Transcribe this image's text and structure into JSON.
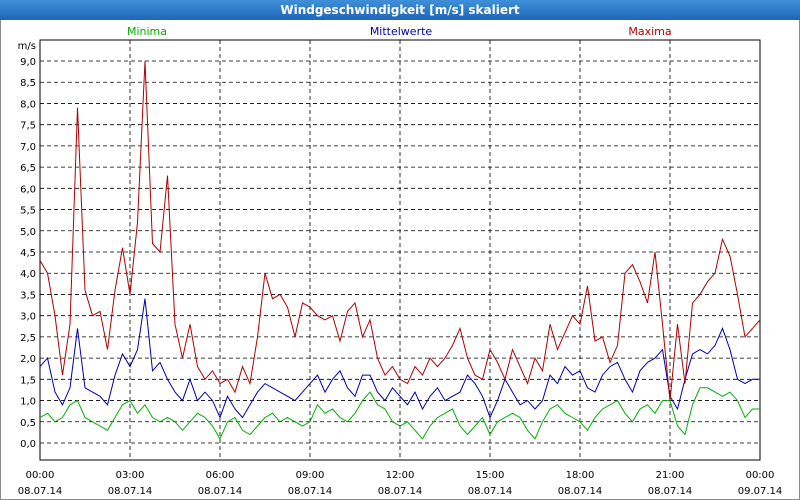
{
  "window": {
    "title": "Windgeschwindigkeit [m/s] skaliert"
  },
  "chart_data": {
    "type": "line",
    "title": "Windgeschwindigkeit [m/s] skaliert",
    "ylabel": "m/s",
    "xlabel": "",
    "ylim": [
      0,
      9
    ],
    "xlim": [
      0,
      24
    ],
    "y_ticks": [
      "0,0",
      "0,5",
      "1,0",
      "1,5",
      "2,0",
      "2,5",
      "3,0",
      "3,5",
      "4,0",
      "4,5",
      "5,0",
      "5,5",
      "6,0",
      "6,5",
      "7,0",
      "7,5",
      "8,0",
      "8,5",
      "9,0"
    ],
    "x_ticks": [
      {
        "time": "00:00",
        "date": "08.07.14"
      },
      {
        "time": "03:00",
        "date": "08.07.14"
      },
      {
        "time": "06:00",
        "date": "08.07.14"
      },
      {
        "time": "09:00",
        "date": "08.07.14"
      },
      {
        "time": "12:00",
        "date": "08.07.14"
      },
      {
        "time": "15:00",
        "date": "08.07.14"
      },
      {
        "time": "18:00",
        "date": "08.07.14"
      },
      {
        "time": "21:00",
        "date": "08.07.14"
      },
      {
        "time": "00:00",
        "date": "09.07.14"
      }
    ],
    "grid": true,
    "series": [
      {
        "name": "Minima",
        "color": "#00b000",
        "x": [
          0,
          0.25,
          0.5,
          0.75,
          1,
          1.25,
          1.5,
          1.75,
          2,
          2.25,
          2.5,
          2.75,
          3,
          3.25,
          3.5,
          3.75,
          4,
          4.25,
          4.5,
          4.75,
          5,
          5.25,
          5.5,
          5.75,
          6,
          6.25,
          6.5,
          6.75,
          7,
          7.25,
          7.5,
          7.75,
          8,
          8.25,
          8.5,
          8.75,
          9,
          9.25,
          9.5,
          9.75,
          10,
          10.25,
          10.5,
          10.75,
          11,
          11.25,
          11.5,
          11.75,
          12,
          12.25,
          12.5,
          12.75,
          13,
          13.25,
          13.5,
          13.75,
          14,
          14.25,
          14.5,
          14.75,
          15,
          15.25,
          15.5,
          15.75,
          16,
          16.25,
          16.5,
          16.75,
          17,
          17.25,
          17.5,
          17.75,
          18,
          18.25,
          18.5,
          18.75,
          19,
          19.25,
          19.5,
          19.75,
          20,
          20.25,
          20.5,
          20.75,
          21,
          21.25,
          21.5,
          21.75,
          22,
          22.25,
          22.5,
          22.75,
          23,
          23.25,
          23.5,
          23.75,
          24
        ],
        "values": [
          0.6,
          0.7,
          0.5,
          0.6,
          0.9,
          1.0,
          0.6,
          0.5,
          0.4,
          0.3,
          0.6,
          0.9,
          1.0,
          0.7,
          0.9,
          0.6,
          0.5,
          0.6,
          0.5,
          0.3,
          0.5,
          0.7,
          0.6,
          0.4,
          0.1,
          0.5,
          0.6,
          0.3,
          0.2,
          0.4,
          0.6,
          0.7,
          0.5,
          0.6,
          0.5,
          0.4,
          0.5,
          0.9,
          0.7,
          0.8,
          0.6,
          0.5,
          0.7,
          1.0,
          1.2,
          0.9,
          0.8,
          0.5,
          0.4,
          0.5,
          0.3,
          0.1,
          0.4,
          0.6,
          0.7,
          0.8,
          0.4,
          0.2,
          0.4,
          0.6,
          0.2,
          0.5,
          0.6,
          0.7,
          0.6,
          0.3,
          0.1,
          0.5,
          0.8,
          0.9,
          0.7,
          0.6,
          0.5,
          0.3,
          0.6,
          0.8,
          0.9,
          1.0,
          0.7,
          0.5,
          0.8,
          0.9,
          0.7,
          1.0,
          1.0,
          0.4,
          0.2,
          0.9,
          1.3,
          1.3,
          1.2,
          1.1,
          1.2,
          1.0,
          0.6,
          0.8,
          0.8
        ]
      },
      {
        "name": "Mittelwerte",
        "color": "#0000b0",
        "x": [
          0,
          0.25,
          0.5,
          0.75,
          1,
          1.25,
          1.5,
          1.75,
          2,
          2.25,
          2.5,
          2.75,
          3,
          3.25,
          3.5,
          3.75,
          4,
          4.25,
          4.5,
          4.75,
          5,
          5.25,
          5.5,
          5.75,
          6,
          6.25,
          6.5,
          6.75,
          7,
          7.25,
          7.5,
          7.75,
          8,
          8.25,
          8.5,
          8.75,
          9,
          9.25,
          9.5,
          9.75,
          10,
          10.25,
          10.5,
          10.75,
          11,
          11.25,
          11.5,
          11.75,
          12,
          12.25,
          12.5,
          12.75,
          13,
          13.25,
          13.5,
          13.75,
          14,
          14.25,
          14.5,
          14.75,
          15,
          15.25,
          15.5,
          15.75,
          16,
          16.25,
          16.5,
          16.75,
          17,
          17.25,
          17.5,
          17.75,
          18,
          18.25,
          18.5,
          18.75,
          19,
          19.25,
          19.5,
          19.75,
          20,
          20.25,
          20.5,
          20.75,
          21,
          21.25,
          21.5,
          21.75,
          22,
          22.25,
          22.5,
          22.75,
          23,
          23.25,
          23.5,
          23.75,
          24
        ],
        "values": [
          1.8,
          2.0,
          1.2,
          0.9,
          1.3,
          2.7,
          1.3,
          1.2,
          1.1,
          0.9,
          1.6,
          2.1,
          1.8,
          2.2,
          3.4,
          1.7,
          1.9,
          1.5,
          1.2,
          1.0,
          1.5,
          1.0,
          1.2,
          1.0,
          0.6,
          1.1,
          0.8,
          0.6,
          0.9,
          1.2,
          1.4,
          1.3,
          1.2,
          1.1,
          1.0,
          1.2,
          1.4,
          1.6,
          1.2,
          1.5,
          1.7,
          1.3,
          1.1,
          1.6,
          1.6,
          1.2,
          1.0,
          1.3,
          1.1,
          0.9,
          1.2,
          0.8,
          1.1,
          1.3,
          1.0,
          1.1,
          1.2,
          1.6,
          1.4,
          1.1,
          0.6,
          1.0,
          1.5,
          1.2,
          0.9,
          1.0,
          0.8,
          1.0,
          1.6,
          1.4,
          1.8,
          1.6,
          1.7,
          1.3,
          1.2,
          1.6,
          1.8,
          1.9,
          1.5,
          1.2,
          1.7,
          1.9,
          2.0,
          2.2,
          1.1,
          0.8,
          1.5,
          2.1,
          2.2,
          2.1,
          2.3,
          2.7,
          2.2,
          1.5,
          1.4,
          1.5,
          1.5
        ]
      },
      {
        "name": "Maxima",
        "color": "#b00000",
        "x": [
          0,
          0.25,
          0.5,
          0.75,
          1,
          1.25,
          1.5,
          1.75,
          2,
          2.25,
          2.5,
          2.75,
          3,
          3.25,
          3.5,
          3.75,
          4,
          4.25,
          4.5,
          4.75,
          5,
          5.25,
          5.5,
          5.75,
          6,
          6.25,
          6.5,
          6.75,
          7,
          7.25,
          7.5,
          7.75,
          8,
          8.25,
          8.5,
          8.75,
          9,
          9.25,
          9.5,
          9.75,
          10,
          10.25,
          10.5,
          10.75,
          11,
          11.25,
          11.5,
          11.75,
          12,
          12.25,
          12.5,
          12.75,
          13,
          13.25,
          13.5,
          13.75,
          14,
          14.25,
          14.5,
          14.75,
          15,
          15.25,
          15.5,
          15.75,
          16,
          16.25,
          16.5,
          16.75,
          17,
          17.25,
          17.5,
          17.75,
          18,
          18.25,
          18.5,
          18.75,
          19,
          19.25,
          19.5,
          19.75,
          20,
          20.25,
          20.5,
          20.75,
          21,
          21.25,
          21.5,
          21.75,
          22,
          22.25,
          22.5,
          22.75,
          23,
          23.25,
          23.5,
          23.75,
          24
        ],
        "values": [
          4.3,
          4.0,
          3.0,
          1.6,
          2.8,
          7.9,
          3.6,
          3.0,
          3.1,
          2.2,
          3.6,
          4.6,
          3.5,
          5.2,
          9.0,
          4.7,
          4.5,
          6.3,
          2.8,
          2.0,
          2.8,
          1.8,
          1.5,
          1.7,
          1.4,
          1.5,
          1.2,
          1.8,
          1.4,
          2.5,
          4.0,
          3.4,
          3.5,
          3.2,
          2.5,
          3.3,
          3.2,
          3.0,
          2.9,
          3.0,
          2.4,
          3.1,
          3.3,
          2.5,
          2.9,
          2.0,
          1.6,
          1.8,
          1.5,
          1.4,
          1.8,
          1.6,
          2.0,
          1.8,
          2.0,
          2.3,
          2.7,
          2.0,
          1.6,
          1.5,
          2.2,
          1.9,
          1.5,
          2.2,
          1.8,
          1.4,
          2.0,
          1.7,
          2.8,
          2.2,
          2.6,
          3.0,
          2.8,
          3.7,
          2.4,
          2.5,
          1.9,
          2.3,
          4.0,
          4.2,
          3.8,
          3.3,
          4.5,
          2.8,
          1.0,
          2.8,
          1.4,
          3.3,
          3.5,
          3.8,
          4.0,
          4.8,
          4.4,
          3.5,
          2.5,
          2.7,
          2.9
        ]
      }
    ]
  }
}
